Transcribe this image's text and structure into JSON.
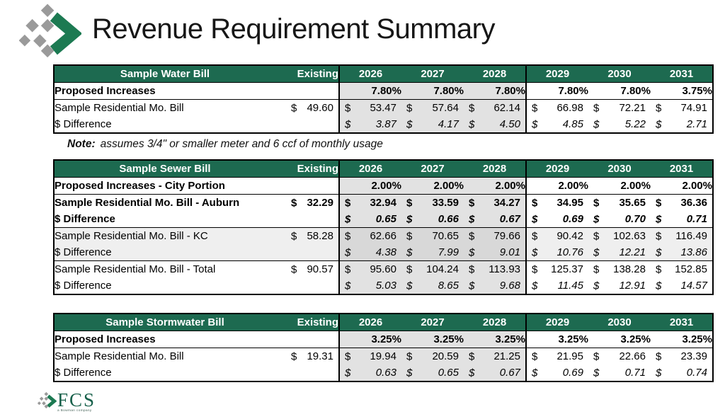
{
  "slide": {
    "title": "Revenue Requirement Summary"
  },
  "columns": {
    "existing_label": "Existing",
    "years": [
      "2026",
      "2027",
      "2028",
      "2029",
      "2030",
      "2031"
    ]
  },
  "tables": [
    {
      "title": "Sample Water Bill",
      "increase_label": "Proposed Increases",
      "increases": [
        "7.80%",
        "7.80%",
        "7.80%",
        "7.80%",
        "7.80%",
        "3.75%"
      ],
      "rows": [
        {
          "label": "Sample Residential Mo. Bill",
          "indent": 1,
          "sep": true,
          "existing": "49.60",
          "values": [
            "53.47",
            "57.64",
            "62.14",
            "66.98",
            "72.21",
            "74.91"
          ]
        },
        {
          "label": "$ Difference",
          "indent": 2,
          "diff": true,
          "existing": "",
          "values": [
            "3.87",
            "4.17",
            "4.50",
            "4.85",
            "5.22",
            "2.71"
          ]
        }
      ]
    },
    {
      "title": "Sample Sewer Bill",
      "increase_label": "Proposed Increases - City Portion",
      "increases": [
        "2.00%",
        "2.00%",
        "2.00%",
        "2.00%",
        "2.00%",
        "2.00%"
      ],
      "rows": [
        {
          "label": "Sample Residential Mo. Bill - Auburn",
          "indent": 1,
          "bold": true,
          "sep": true,
          "existing": "32.29",
          "values": [
            "32.94",
            "33.59",
            "34.27",
            "34.95",
            "35.65",
            "36.36"
          ]
        },
        {
          "label": "$ Difference",
          "indent": 2,
          "bold": true,
          "diff": true,
          "existing": "",
          "values": [
            "0.65",
            "0.66",
            "0.67",
            "0.69",
            "0.70",
            "0.71"
          ]
        },
        {
          "label": "Sample Residential Mo. Bill - KC",
          "indent": 1,
          "band": true,
          "sep": true,
          "existing": "58.28",
          "values": [
            "62.66",
            "70.65",
            "79.66",
            "90.42",
            "102.63",
            "116.49"
          ]
        },
        {
          "label": "$ Difference",
          "indent": 2,
          "band": true,
          "diff": true,
          "existing": "",
          "values": [
            "4.38",
            "7.99",
            "9.01",
            "10.76",
            "12.21",
            "13.86"
          ]
        },
        {
          "label": "Sample Residential Mo. Bill - Total",
          "indent": 0,
          "sep": true,
          "existing": "90.57",
          "values": [
            "95.60",
            "104.24",
            "113.93",
            "125.37",
            "138.28",
            "152.85"
          ]
        },
        {
          "label": "$ Difference",
          "indent": 2,
          "diff": true,
          "existing": "",
          "values": [
            "5.03",
            "8.65",
            "9.68",
            "11.45",
            "12.91",
            "14.57"
          ]
        }
      ]
    },
    {
      "title": "Sample Stormwater Bill",
      "increase_label": "Proposed Increases",
      "increases": [
        "3.25%",
        "3.25%",
        "3.25%",
        "3.25%",
        "3.25%",
        "3.25%"
      ],
      "rows": [
        {
          "label": "Sample Residential Mo. Bill",
          "indent": 1,
          "sep": true,
          "existing": "19.31",
          "values": [
            "19.94",
            "20.59",
            "21.25",
            "21.95",
            "22.66",
            "23.39"
          ]
        },
        {
          "label": "$ Difference",
          "indent": 2,
          "diff": true,
          "existing": "",
          "values": [
            "0.63",
            "0.65",
            "0.67",
            "0.69",
            "0.71",
            "0.74"
          ]
        }
      ]
    }
  ],
  "note": {
    "label": "Note:",
    "text": "assumes 3/4\" or smaller meter and 6 ccf of monthly usage"
  },
  "footer_logo": {
    "text": "FCS",
    "tagline": "a Bowman company"
  },
  "colors": {
    "header_green": "#1d6a50",
    "logo_green": "#1c7a52",
    "logo_gray": "#9a9a9a",
    "shade_gray": "#e2e2e2",
    "band_gray": "#efefef"
  }
}
